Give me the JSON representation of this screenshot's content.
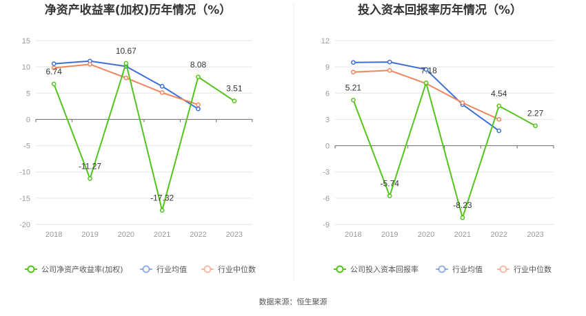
{
  "source": "数据来源：恒生聚源",
  "chart_data": [
    {
      "type": "line",
      "title": "净资产收益率(加权)历年情况（%）",
      "categories": [
        "2018",
        "2019",
        "2020",
        "2021",
        "2022",
        "2023"
      ],
      "ylim": [
        -20,
        15
      ],
      "yticks": [
        15,
        10,
        5,
        0,
        -5,
        -10,
        -15,
        -20
      ],
      "grid": true,
      "legend_position": "bottom",
      "series": [
        {
          "name": "公司净资产收益率(加权)",
          "color": "#52c41a",
          "values": [
            6.74,
            -11.27,
            10.67,
            -17.32,
            8.08,
            3.51
          ],
          "labels": [
            "6.74",
            "-11.27",
            "10.67",
            "-17.32",
            "8.08",
            "3.51"
          ]
        },
        {
          "name": "行业均值",
          "color": "#3a6fd8",
          "values": [
            10.6,
            11.1,
            10.1,
            6.3,
            2.0,
            null
          ]
        },
        {
          "name": "行业中位数",
          "color": "#f0845a",
          "values": [
            9.8,
            10.5,
            7.9,
            5.1,
            2.8,
            null
          ]
        }
      ]
    },
    {
      "type": "line",
      "title": "投入资本回报率历年情况（%）",
      "categories": [
        "2018",
        "2019",
        "2020",
        "2021",
        "2022",
        "2023"
      ],
      "ylim": [
        -9,
        12
      ],
      "yticks": [
        12,
        9,
        6,
        3,
        0,
        -3,
        -6,
        -9
      ],
      "grid": true,
      "legend_position": "bottom",
      "series": [
        {
          "name": "公司投入资本回报率",
          "color": "#52c41a",
          "values": [
            5.21,
            -5.74,
            7.18,
            -8.23,
            4.54,
            2.27
          ],
          "labels": [
            "5.21",
            "-5.74",
            "7.18",
            "-8.23",
            "4.54",
            "2.27"
          ]
        },
        {
          "name": "行业均值",
          "color": "#3a6fd8",
          "values": [
            9.5,
            9.55,
            8.7,
            4.7,
            1.7,
            null
          ]
        },
        {
          "name": "行业中位数",
          "color": "#f0845a",
          "values": [
            8.4,
            8.6,
            7.1,
            4.9,
            3.0,
            null
          ]
        }
      ]
    }
  ]
}
